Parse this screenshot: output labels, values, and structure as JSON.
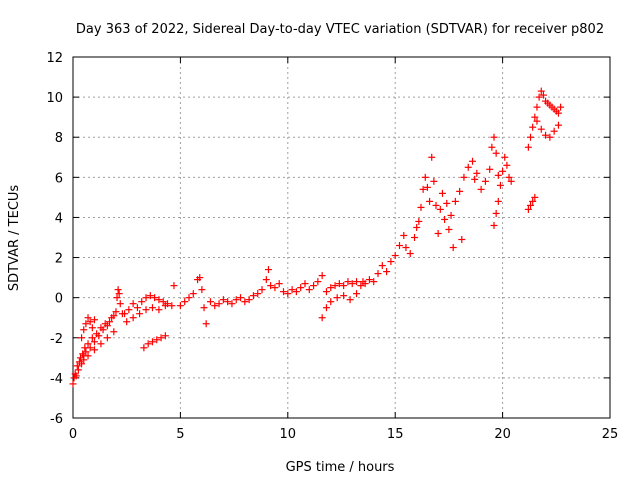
{
  "chart_data": {
    "type": "scatter",
    "title": "Day 363 of 2022, Sidereal Day-to-day VTEC variation (SDTVAR) for receiver p802",
    "xlabel": "GPS time / hours",
    "ylabel": "SDTVAR / TECUs",
    "xlim": [
      0,
      25
    ],
    "ylim": [
      -6,
      12
    ],
    "xticks": [
      0,
      5,
      10,
      15,
      20,
      25
    ],
    "yticks": [
      -6,
      -4,
      -2,
      0,
      2,
      4,
      6,
      8,
      10,
      12
    ],
    "xtick_labels": [
      "0",
      "5",
      "10",
      "15",
      "20",
      "25"
    ],
    "ytick_labels": [
      "-6",
      "-4",
      "-2",
      "0",
      "2",
      "4",
      "6",
      "8",
      "10",
      "12"
    ],
    "grid": true,
    "marker": "+",
    "color": "#ff0000",
    "series": [
      {
        "name": "SDTVAR",
        "points": [
          [
            0.0,
            -4.3
          ],
          [
            0.05,
            -4.0
          ],
          [
            0.1,
            -3.8
          ],
          [
            0.15,
            -3.9
          ],
          [
            0.2,
            -3.4
          ],
          [
            0.25,
            -3.6
          ],
          [
            0.3,
            -3.2
          ],
          [
            0.35,
            -3.0
          ],
          [
            0.4,
            -3.3
          ],
          [
            0.45,
            -2.8
          ],
          [
            0.5,
            -2.9
          ],
          [
            0.55,
            -2.5
          ],
          [
            0.6,
            -2.7
          ],
          [
            0.7,
            -2.3
          ],
          [
            0.8,
            -2.5
          ],
          [
            0.9,
            -2.0
          ],
          [
            1.0,
            -2.2
          ],
          [
            1.1,
            -1.8
          ],
          [
            1.2,
            -1.9
          ],
          [
            1.3,
            -1.5
          ],
          [
            1.4,
            -1.6
          ],
          [
            1.5,
            -1.3
          ],
          [
            1.6,
            -1.4
          ],
          [
            1.7,
            -1.2
          ],
          [
            1.8,
            -1.0
          ],
          [
            1.9,
            -0.9
          ],
          [
            2.0,
            -0.7
          ],
          [
            2.05,
            0.0
          ],
          [
            2.1,
            0.4
          ],
          [
            2.15,
            0.2
          ],
          [
            2.2,
            -0.3
          ],
          [
            2.3,
            -0.8
          ],
          [
            0.4,
            -2.0
          ],
          [
            0.5,
            -1.6
          ],
          [
            0.6,
            -1.3
          ],
          [
            0.7,
            -1.0
          ],
          [
            0.8,
            -1.2
          ],
          [
            0.9,
            -1.5
          ],
          [
            1.0,
            -1.1
          ],
          [
            0.5,
            -3.1
          ],
          [
            0.7,
            -2.9
          ],
          [
            1.0,
            -2.6
          ],
          [
            1.3,
            -2.3
          ],
          [
            1.6,
            -2.0
          ],
          [
            1.9,
            -1.7
          ],
          [
            2.4,
            -0.8
          ],
          [
            2.6,
            -0.6
          ],
          [
            2.8,
            -0.3
          ],
          [
            3.0,
            -0.5
          ],
          [
            3.2,
            -0.2
          ],
          [
            3.4,
            0.0
          ],
          [
            3.6,
            0.1
          ],
          [
            3.8,
            0.0
          ],
          [
            4.0,
            -0.1
          ],
          [
            4.2,
            -0.2
          ],
          [
            4.4,
            -0.3
          ],
          [
            2.5,
            -1.2
          ],
          [
            2.8,
            -1.0
          ],
          [
            3.1,
            -0.8
          ],
          [
            3.4,
            -0.6
          ],
          [
            3.7,
            -0.5
          ],
          [
            4.0,
            -0.6
          ],
          [
            4.3,
            -0.4
          ],
          [
            4.6,
            -0.4
          ],
          [
            3.3,
            -2.5
          ],
          [
            3.5,
            -2.3
          ],
          [
            3.7,
            -2.2
          ],
          [
            3.9,
            -2.1
          ],
          [
            4.1,
            -2.0
          ],
          [
            4.3,
            -1.9
          ],
          [
            4.7,
            0.6
          ],
          [
            5.0,
            -0.4
          ],
          [
            5.2,
            -0.2
          ],
          [
            5.4,
            0.0
          ],
          [
            5.6,
            0.2
          ],
          [
            5.8,
            0.9
          ],
          [
            5.9,
            1.0
          ],
          [
            6.0,
            0.4
          ],
          [
            6.1,
            -0.5
          ],
          [
            6.2,
            -1.3
          ],
          [
            6.4,
            -0.2
          ],
          [
            6.6,
            -0.4
          ],
          [
            6.8,
            -0.3
          ],
          [
            7.0,
            -0.1
          ],
          [
            7.2,
            -0.2
          ],
          [
            7.4,
            -0.3
          ],
          [
            7.6,
            -0.1
          ],
          [
            7.8,
            0.0
          ],
          [
            8.0,
            -0.2
          ],
          [
            8.2,
            -0.1
          ],
          [
            8.4,
            0.1
          ],
          [
            8.6,
            0.2
          ],
          [
            8.8,
            0.4
          ],
          [
            9.0,
            0.9
          ],
          [
            9.1,
            1.4
          ],
          [
            9.2,
            0.6
          ],
          [
            9.4,
            0.5
          ],
          [
            9.6,
            0.7
          ],
          [
            9.8,
            0.3
          ],
          [
            10.0,
            0.2
          ],
          [
            10.2,
            0.4
          ],
          [
            10.4,
            0.3
          ],
          [
            10.6,
            0.5
          ],
          [
            10.8,
            0.7
          ],
          [
            11.0,
            0.4
          ],
          [
            11.2,
            0.6
          ],
          [
            11.4,
            0.8
          ],
          [
            11.6,
            1.1
          ],
          [
            11.8,
            0.3
          ],
          [
            12.0,
            0.5
          ],
          [
            12.2,
            0.6
          ],
          [
            12.4,
            0.7
          ],
          [
            12.6,
            0.6
          ],
          [
            12.8,
            0.8
          ],
          [
            13.0,
            0.7
          ],
          [
            13.2,
            0.8
          ],
          [
            13.4,
            0.6
          ],
          [
            13.6,
            0.7
          ],
          [
            11.6,
            -1.0
          ],
          [
            11.8,
            -0.5
          ],
          [
            12.0,
            -0.2
          ],
          [
            12.3,
            0.0
          ],
          [
            12.6,
            0.1
          ],
          [
            12.9,
            -0.1
          ],
          [
            13.2,
            0.2
          ],
          [
            13.5,
            0.8
          ],
          [
            13.8,
            0.9
          ],
          [
            14.0,
            0.8
          ],
          [
            14.2,
            1.2
          ],
          [
            14.4,
            1.6
          ],
          [
            14.6,
            1.3
          ],
          [
            14.8,
            1.8
          ],
          [
            15.0,
            2.1
          ],
          [
            15.2,
            2.6
          ],
          [
            15.4,
            3.1
          ],
          [
            15.5,
            2.5
          ],
          [
            15.7,
            2.2
          ],
          [
            15.9,
            3.0
          ],
          [
            16.0,
            3.5
          ],
          [
            16.1,
            3.8
          ],
          [
            16.2,
            4.5
          ],
          [
            16.3,
            5.4
          ],
          [
            16.4,
            6.0
          ],
          [
            16.5,
            5.5
          ],
          [
            16.6,
            4.8
          ],
          [
            16.7,
            7.0
          ],
          [
            16.8,
            5.8
          ],
          [
            16.9,
            4.6
          ],
          [
            17.0,
            3.2
          ],
          [
            17.1,
            4.4
          ],
          [
            17.2,
            5.2
          ],
          [
            17.3,
            3.9
          ],
          [
            17.4,
            4.7
          ],
          [
            17.5,
            3.4
          ],
          [
            17.6,
            4.1
          ],
          [
            17.8,
            4.8
          ],
          [
            18.0,
            5.3
          ],
          [
            18.2,
            6.0
          ],
          [
            18.4,
            6.5
          ],
          [
            18.6,
            6.8
          ],
          [
            18.7,
            5.9
          ],
          [
            18.8,
            6.2
          ],
          [
            19.0,
            5.4
          ],
          [
            19.2,
            5.8
          ],
          [
            19.4,
            6.4
          ],
          [
            19.5,
            7.5
          ],
          [
            19.6,
            8.0
          ],
          [
            19.7,
            7.2
          ],
          [
            19.8,
            6.1
          ],
          [
            19.9,
            5.6
          ],
          [
            20.0,
            6.3
          ],
          [
            20.1,
            7.0
          ],
          [
            20.2,
            6.6
          ],
          [
            20.3,
            6.0
          ],
          [
            20.4,
            5.8
          ],
          [
            19.6,
            3.6
          ],
          [
            19.7,
            4.2
          ],
          [
            19.8,
            4.8
          ],
          [
            18.1,
            2.9
          ],
          [
            17.7,
            2.5
          ],
          [
            21.2,
            4.4
          ],
          [
            21.3,
            4.6
          ],
          [
            21.4,
            4.8
          ],
          [
            21.5,
            5.0
          ],
          [
            21.2,
            7.5
          ],
          [
            21.3,
            8.0
          ],
          [
            21.4,
            8.5
          ],
          [
            21.5,
            9.0
          ],
          [
            21.6,
            9.5
          ],
          [
            21.7,
            10.0
          ],
          [
            21.8,
            10.3
          ],
          [
            21.9,
            10.1
          ],
          [
            22.0,
            9.8
          ],
          [
            22.1,
            9.7
          ],
          [
            22.2,
            9.6
          ],
          [
            22.3,
            9.5
          ],
          [
            22.4,
            9.4
          ],
          [
            22.5,
            9.3
          ],
          [
            22.6,
            9.2
          ],
          [
            22.7,
            9.5
          ],
          [
            21.6,
            8.8
          ],
          [
            21.8,
            8.4
          ],
          [
            22.0,
            8.1
          ],
          [
            22.2,
            8.0
          ],
          [
            22.4,
            8.3
          ],
          [
            22.6,
            8.6
          ]
        ]
      }
    ]
  }
}
